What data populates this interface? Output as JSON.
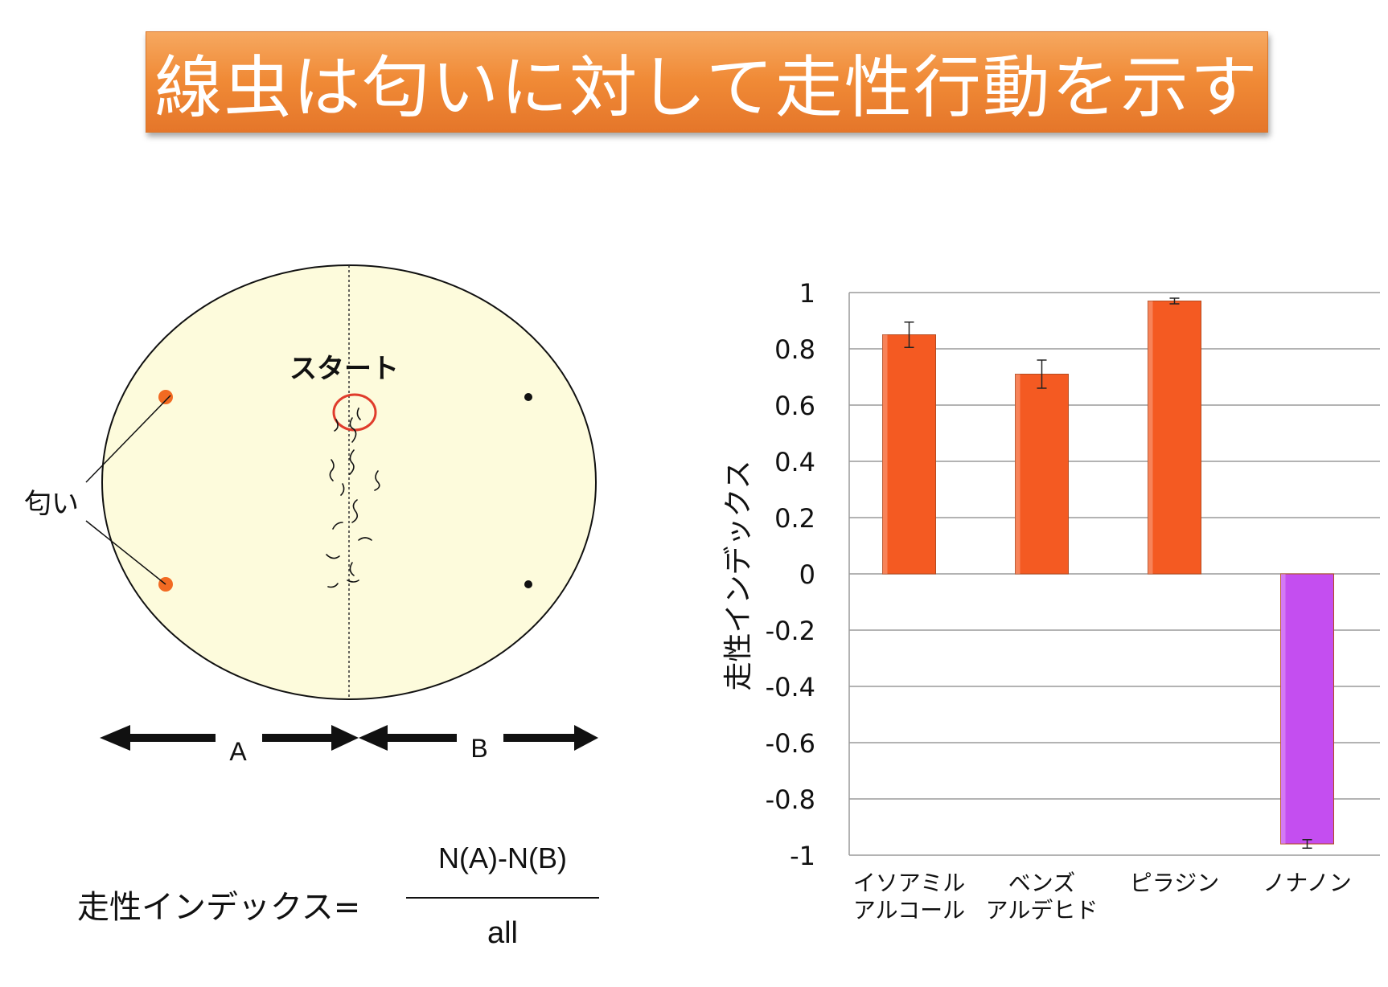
{
  "title": "線虫は匂いに対して走性行動を示す",
  "diagram": {
    "start_label": "スタート",
    "odor_label": "匂い",
    "region_a": "A",
    "region_b": "B"
  },
  "formula": {
    "label": "走性インデックス=",
    "numerator": "N(A)-N(B)",
    "denominator": "all"
  },
  "colors": {
    "banner": "#f08a36",
    "plate": "#fdfbdc",
    "odor_dot": "#f26a22",
    "start_circle": "#e03c2c",
    "bar_positive": "#f45a22",
    "bar_negative": "#c44ef0"
  },
  "chart_data": {
    "type": "bar",
    "categories": [
      [
        "イソアミル",
        "アルコール"
      ],
      [
        "ベンズ",
        "アルデヒド"
      ],
      [
        "ピラジン"
      ],
      [
        "ノナノン"
      ]
    ],
    "values": [
      0.85,
      0.71,
      0.97,
      -0.96
    ],
    "errors": [
      0.045,
      0.05,
      0.01,
      0.015
    ],
    "bar_colors": [
      "#f45a22",
      "#f45a22",
      "#f45a22",
      "#c44ef0"
    ],
    "ylabel": "走性インデックス",
    "ylim": [
      -1,
      1
    ],
    "yticks": [
      "1",
      "0.8",
      "0.6",
      "0.4",
      "0.2",
      "0",
      "-0.2",
      "-0.4",
      "-0.6",
      "-0.8",
      "-1"
    ],
    "grid": true
  }
}
